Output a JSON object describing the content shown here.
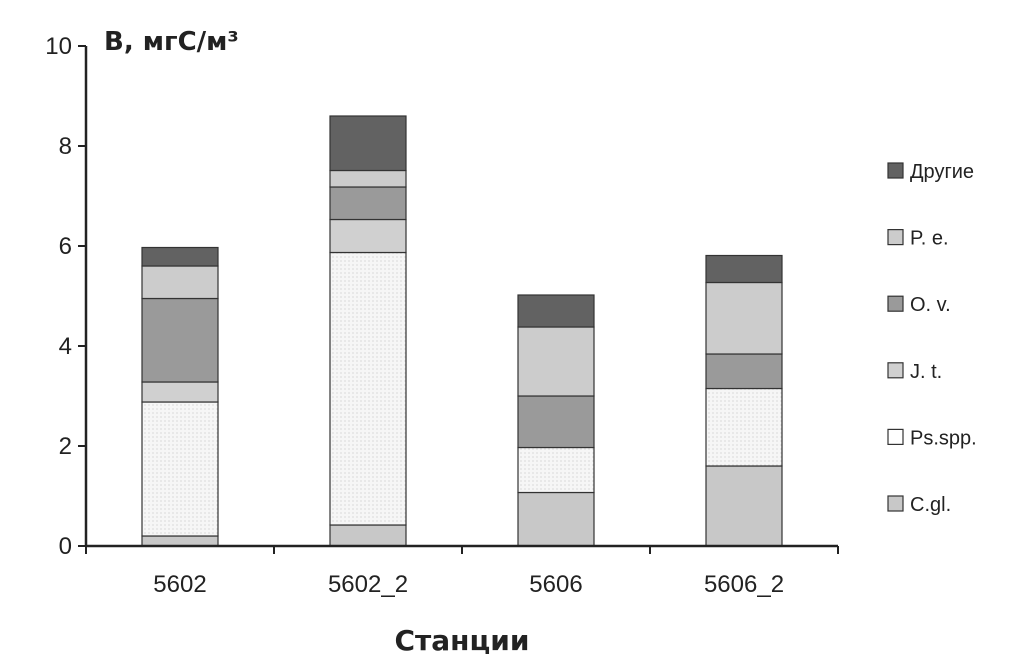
{
  "chart_data": {
    "type": "bar",
    "stacked": true,
    "title": "",
    "ylabel": "B, мгС/м³",
    "xlabel": "Станции",
    "ylim": [
      0,
      10
    ],
    "yticks": [
      0,
      2,
      4,
      6,
      8,
      10
    ],
    "grid": false,
    "legend_position": "right",
    "categories": [
      "5602",
      "5602_2",
      "5606",
      "5606_2"
    ],
    "series": [
      {
        "name": "C.gl.",
        "color": "#c8c8c8",
        "values": [
          0.2,
          0.42,
          1.07,
          1.6
        ]
      },
      {
        "name": "Ps.spp.",
        "color": "#f4f4f4",
        "values": [
          2.68,
          5.45,
          0.9,
          1.55
        ]
      },
      {
        "name": "J. t.",
        "color": "#d0d0d0",
        "values": [
          0.4,
          0.66,
          0.0,
          0.0
        ]
      },
      {
        "name": "O. v.",
        "color": "#9a9a9a",
        "values": [
          1.67,
          0.65,
          1.03,
          0.69
        ]
      },
      {
        "name": "P. e.",
        "color": "#cccccc",
        "values": [
          0.65,
          0.33,
          1.38,
          1.43
        ]
      },
      {
        "name": "Другие",
        "color": "#626262",
        "values": [
          0.37,
          1.09,
          0.64,
          0.54
        ]
      }
    ]
  }
}
